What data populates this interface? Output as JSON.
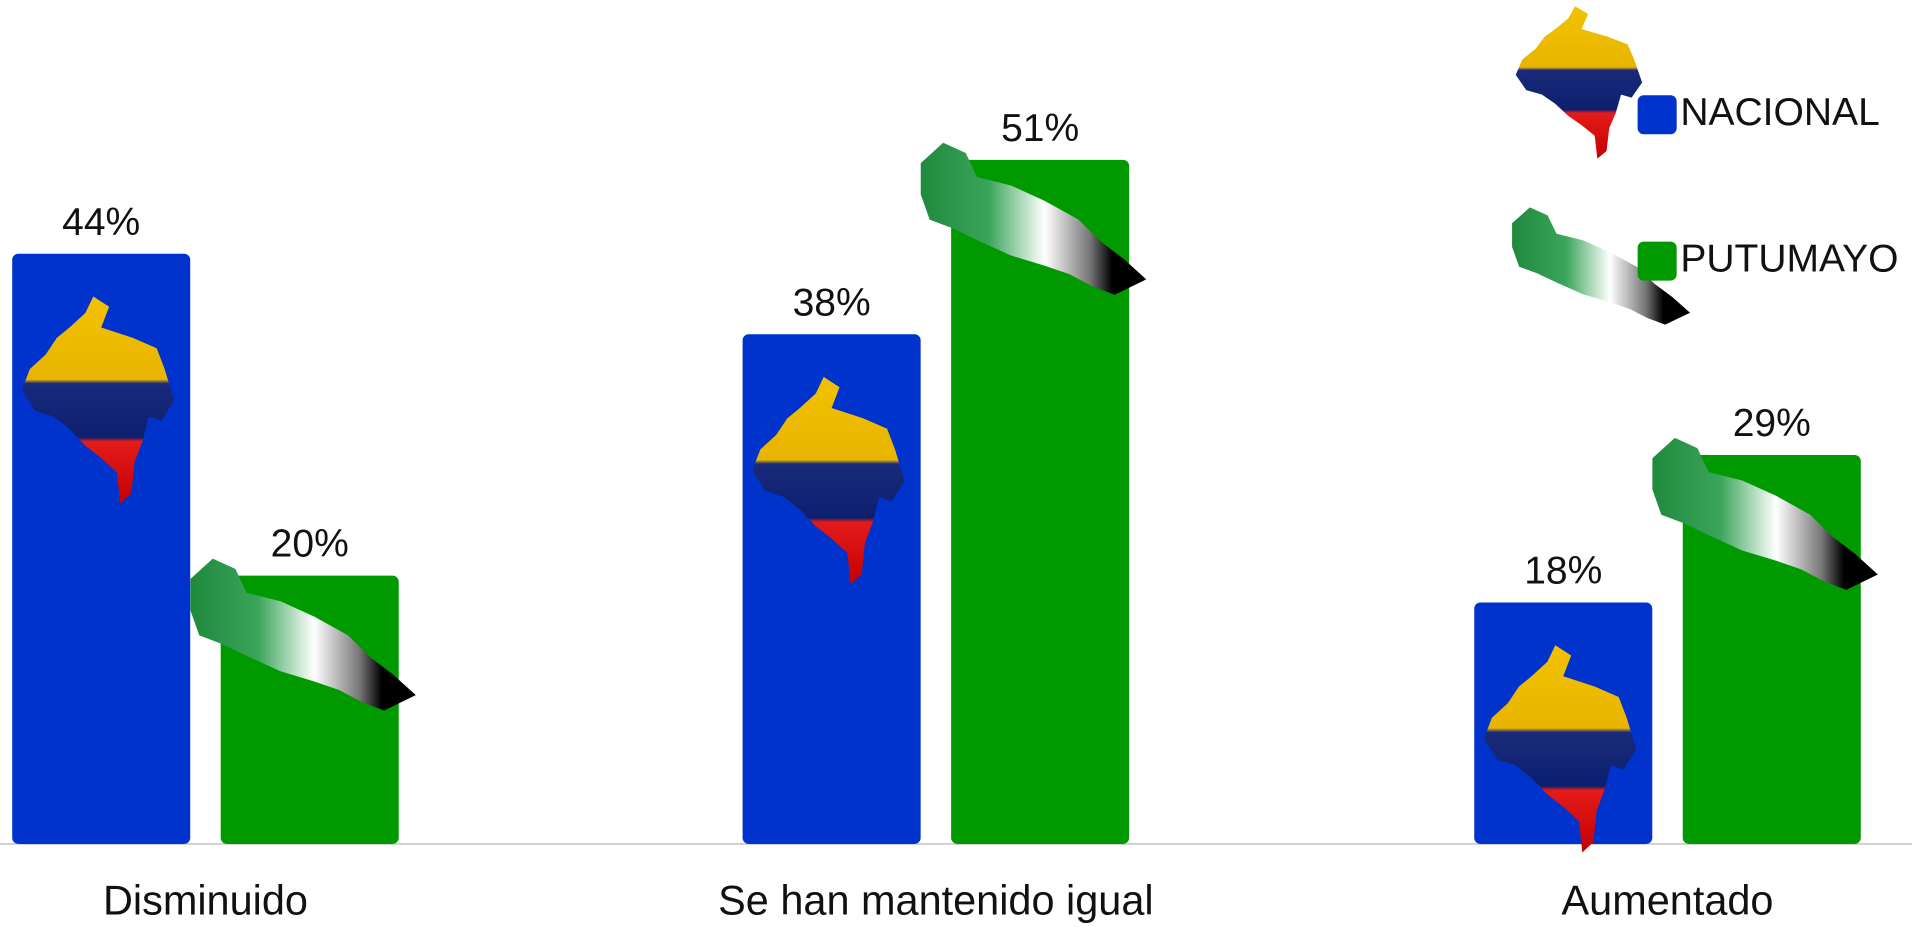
{
  "chart_data": {
    "type": "bar",
    "categories": [
      "Disminuido",
      "Se han mantenido igual",
      "Aumentado"
    ],
    "series": [
      {
        "name": "NACIONAL",
        "color": "#0033cc",
        "values": [
          44,
          38,
          18
        ],
        "value_labels": [
          "44%",
          "38%",
          "18%"
        ]
      },
      {
        "name": "PUTUMAYO",
        "color": "#009900",
        "values": [
          20,
          51,
          29
        ],
        "value_labels": [
          "20%",
          "51%",
          "29%"
        ]
      }
    ]
  }
}
